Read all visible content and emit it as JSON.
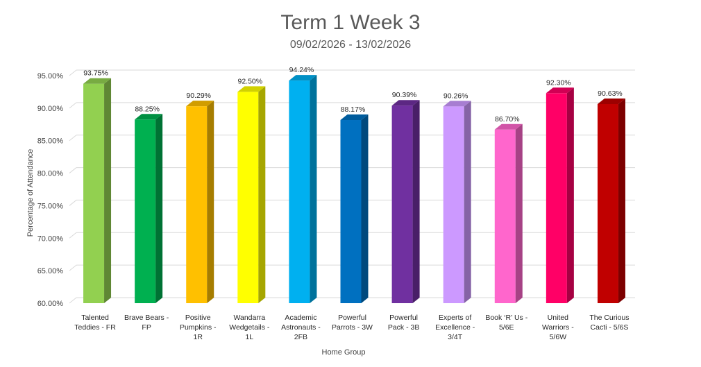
{
  "chart_data": {
    "type": "bar",
    "title": "Term 1 Week 3",
    "subtitle": "09/02/2026 - 13/02/2026",
    "xlabel": "Home Group",
    "ylabel": "Percentage of Attendance",
    "ylim": [
      60,
      95
    ],
    "yticks": [
      "60.00%",
      "65.00%",
      "70.00%",
      "75.00%",
      "80.00%",
      "85.00%",
      "90.00%",
      "95.00%"
    ],
    "grid": true,
    "categories": [
      [
        "Talented",
        "Teddies - FR"
      ],
      [
        "Brave Bears -",
        "FP"
      ],
      [
        "Positive",
        "Pumpkins -",
        "1R"
      ],
      [
        "Wandarra",
        "Wedgetails -",
        "1L"
      ],
      [
        "Academic",
        "Astronauts -",
        "2FB"
      ],
      [
        "Powerful",
        "Parrots - 3W"
      ],
      [
        "Powerful",
        "Pack - 3B"
      ],
      [
        "Experts of",
        "Excellence -",
        "3/4T"
      ],
      [
        "Book ‘R’ Us -",
        "5/6E"
      ],
      [
        "United",
        "Warriors -",
        "5/6W"
      ],
      [
        "The Curious",
        "Cacti - 5/6S"
      ]
    ],
    "values": [
      93.75,
      88.25,
      90.29,
      92.5,
      94.24,
      88.17,
      90.39,
      90.26,
      86.7,
      92.3,
      90.63
    ],
    "data_labels": [
      "93.75%",
      "88.25%",
      "90.29%",
      "92.50%",
      "94.24%",
      "88.17%",
      "90.39%",
      "90.26%",
      "86.70%",
      "92.30%",
      "90.63%"
    ],
    "colors": [
      "#92d050",
      "#00b050",
      "#ffc000",
      "#ffff00",
      "#00b0f0",
      "#0070c0",
      "#7030a0",
      "#cc99ff",
      "#ff66cc",
      "#ff0066",
      "#c00000"
    ]
  }
}
